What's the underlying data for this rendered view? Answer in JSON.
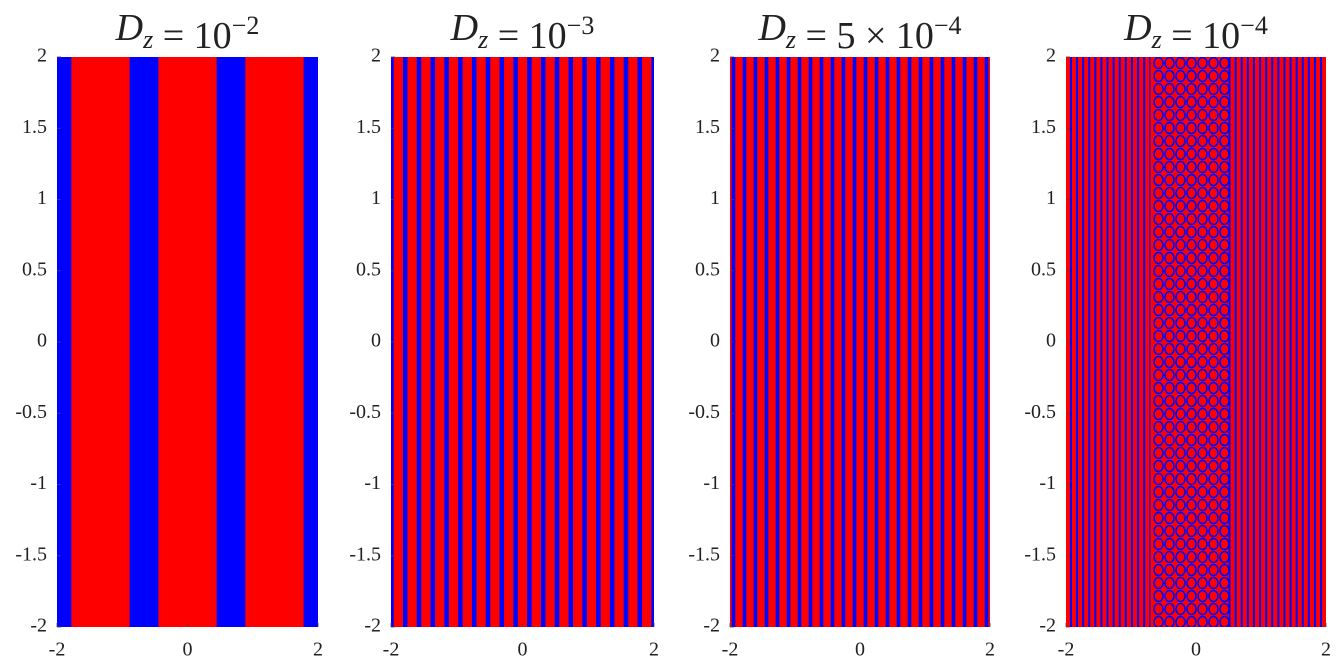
{
  "chart_data": [
    {
      "type": "image",
      "title": "D_z = 10^{−2}",
      "xlim": [
        -2,
        2
      ],
      "ylim": [
        -2,
        2
      ],
      "xticks": [
        -2,
        0,
        2
      ],
      "yticks": [
        -2,
        -1.5,
        -1,
        -0.5,
        0,
        0.5,
        1,
        1.5,
        2
      ],
      "colors": [
        "#ff0000",
        "#0000ff"
      ]
    },
    {
      "type": "image",
      "title": "D_z = 10^{−3}",
      "xlim": [
        -2,
        2
      ],
      "ylim": [
        -2,
        2
      ],
      "xticks": [
        -2,
        0,
        2
      ],
      "yticks": [
        -2,
        -1.5,
        -1,
        -0.5,
        0,
        0.5,
        1,
        1.5,
        2
      ],
      "colors": [
        "#ff0000",
        "#0000ff"
      ]
    },
    {
      "type": "image",
      "title": "D_z = 5 × 10^{−4}",
      "xlim": [
        -2,
        2
      ],
      "ylim": [
        -2,
        2
      ],
      "xticks": [
        -2,
        0,
        2
      ],
      "yticks": [
        -2,
        -1.5,
        -1,
        -0.5,
        0,
        0.5,
        1,
        1.5,
        2
      ],
      "colors": [
        "#ff0000",
        "#0000ff"
      ]
    },
    {
      "type": "image",
      "title": "D_z = 10^{−4}",
      "xlim": [
        -2,
        2
      ],
      "ylim": [
        -2,
        2
      ],
      "xticks": [
        -2,
        0,
        2
      ],
      "yticks": [
        -2,
        -1.5,
        -1,
        -0.5,
        0,
        0.5,
        1,
        1.5,
        2
      ],
      "colors": [
        "#ff0000",
        "#0000ff"
      ]
    }
  ]
}
